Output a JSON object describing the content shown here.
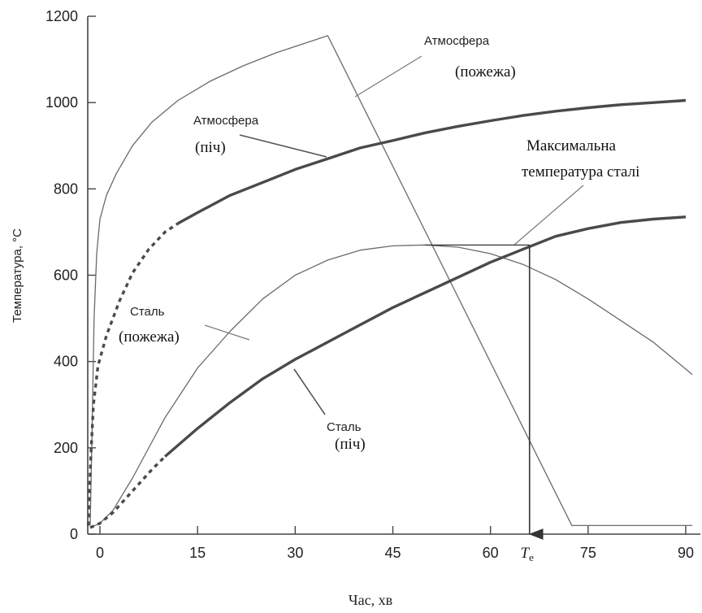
{
  "chart_data": {
    "type": "line",
    "title": "",
    "xlabel": "Час, хв",
    "ylabel": "Температура, °С",
    "xlim": [
      -3,
      91
    ],
    "ylim": [
      0,
      1200
    ],
    "x_ticks": [
      "0",
      "15",
      "30",
      "45",
      "60",
      "75",
      "90"
    ],
    "x_tick_values": [
      0,
      15,
      30,
      45,
      60,
      75,
      90
    ],
    "te_tick": {
      "label": "T",
      "subscript": "e",
      "value": 66
    },
    "y_ticks": [
      "0",
      "200",
      "400",
      "600",
      "800",
      "1000",
      "1200"
    ],
    "y_tick_values": [
      0,
      200,
      400,
      600,
      800,
      1000,
      1200
    ],
    "series": [
      {
        "key": "atm_fire",
        "style": "thin",
        "color": "#6a6a6a",
        "points": [
          [
            -1.5,
            20
          ],
          [
            -1.2,
            250
          ],
          [
            -0.9,
            500
          ],
          [
            -0.5,
            650
          ],
          [
            0,
            730
          ],
          [
            1,
            785
          ],
          [
            2.5,
            835
          ],
          [
            5,
            900
          ],
          [
            8,
            955
          ],
          [
            12,
            1005
          ],
          [
            17,
            1050
          ],
          [
            22,
            1085
          ],
          [
            27,
            1115
          ],
          [
            31,
            1135
          ],
          [
            34,
            1150
          ],
          [
            35,
            1155
          ],
          [
            72.5,
            20
          ],
          [
            91,
            20
          ]
        ]
      },
      {
        "key": "atm_furnace",
        "style": "thick",
        "color": "#4a4a4a",
        "dashed_points": [
          [
            -1.8,
            20
          ],
          [
            -1.4,
            180
          ],
          [
            -1,
            300
          ],
          [
            -0.3,
            390
          ],
          [
            1,
            460
          ],
          [
            3,
            540
          ],
          [
            5,
            605
          ],
          [
            7.5,
            660
          ],
          [
            10,
            700
          ],
          [
            12,
            720
          ]
        ],
        "points": [
          [
            12,
            720
          ],
          [
            15,
            745
          ],
          [
            20,
            785
          ],
          [
            25,
            815
          ],
          [
            30,
            845
          ],
          [
            35,
            870
          ],
          [
            40,
            895
          ],
          [
            45,
            912
          ],
          [
            50,
            930
          ],
          [
            55,
            945
          ],
          [
            60,
            958
          ],
          [
            65,
            970
          ],
          [
            70,
            980
          ],
          [
            75,
            988
          ],
          [
            80,
            995
          ],
          [
            85,
            1000
          ],
          [
            90,
            1005
          ]
        ]
      },
      {
        "key": "steel_fire",
        "style": "thin",
        "color": "#6a6a6a",
        "points": [
          [
            -1.5,
            15
          ],
          [
            0,
            25
          ],
          [
            2,
            55
          ],
          [
            5,
            130
          ],
          [
            10,
            270
          ],
          [
            15,
            385
          ],
          [
            20,
            470
          ],
          [
            25,
            545
          ],
          [
            30,
            600
          ],
          [
            35,
            635
          ],
          [
            40,
            658
          ],
          [
            45,
            668
          ],
          [
            50,
            670
          ],
          [
            55,
            665
          ],
          [
            60,
            650
          ],
          [
            65,
            625
          ],
          [
            70,
            590
          ],
          [
            75,
            545
          ],
          [
            80,
            495
          ],
          [
            85,
            445
          ],
          [
            91,
            370
          ]
        ]
      },
      {
        "key": "steel_furnace",
        "style": "thick",
        "color": "#4a4a4a",
        "dashed_points": [
          [
            -1.5,
            15
          ],
          [
            0,
            25
          ],
          [
            2,
            50
          ],
          [
            5,
            100
          ],
          [
            8,
            150
          ],
          [
            10,
            180
          ]
        ],
        "points": [
          [
            10,
            180
          ],
          [
            15,
            245
          ],
          [
            20,
            305
          ],
          [
            25,
            360
          ],
          [
            30,
            405
          ],
          [
            35,
            445
          ],
          [
            40,
            485
          ],
          [
            45,
            525
          ],
          [
            50,
            560
          ],
          [
            55,
            595
          ],
          [
            60,
            630
          ],
          [
            65,
            660
          ],
          [
            70,
            690
          ],
          [
            75,
            708
          ],
          [
            80,
            722
          ],
          [
            85,
            730
          ],
          [
            90,
            735
          ]
        ]
      }
    ],
    "max_steel_line": {
      "x_start": 50,
      "x_end": 66,
      "y": 670
    },
    "annotations": {
      "atm_fire_name": "Атмосфера",
      "atm_fire_sub": "(пожежа)",
      "atm_furnace_name": "Атмосфера",
      "atm_furnace_sub": "(піч)",
      "max_line1": "Максимальна",
      "max_line2": "температура сталі",
      "steel_fire_name": "Сталь",
      "steel_fire_sub": "(пожежа)",
      "steel_furnace_name": "Сталь",
      "steel_furnace_sub": "(піч)"
    },
    "legend": "none",
    "grid": false
  }
}
